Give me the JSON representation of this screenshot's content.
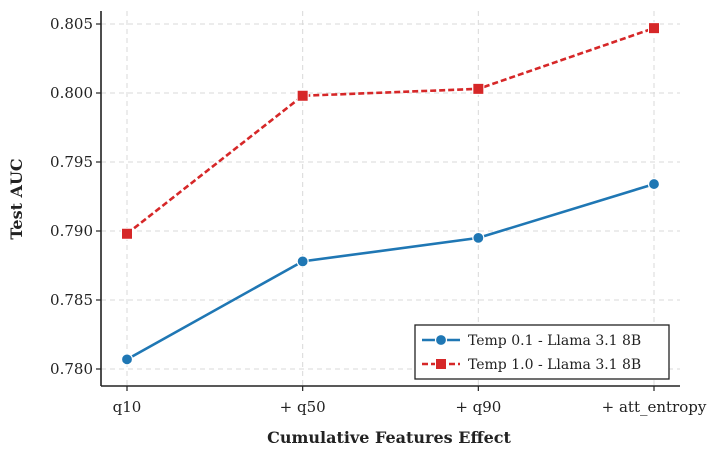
{
  "chart_data": {
    "type": "line",
    "title": "",
    "xlabel": "Cumulative Features Effect",
    "ylabel": "Test AUC",
    "categories": [
      "q10",
      "+ q50",
      "+ q90",
      "+ att_entropy"
    ],
    "ylim": [
      0.7795,
      0.806
    ],
    "yticks": [
      0.78,
      0.785,
      0.79,
      0.795,
      0.8,
      0.805
    ],
    "ytick_labels": [
      "0.780",
      "0.785",
      "0.790",
      "0.795",
      "0.800",
      "0.805"
    ],
    "grid": true,
    "legend_position": "lower-right",
    "series": [
      {
        "name": "Temp 0.1 - Llama 3.1 8B",
        "values": [
          0.7807,
          0.7878,
          0.7895,
          0.7934
        ],
        "color": "#1f77b4",
        "marker": "circle",
        "linestyle": "solid"
      },
      {
        "name": "Temp 1.0 - Llama 3.1 8B",
        "values": [
          0.7898,
          0.7998,
          0.8003,
          0.8047
        ],
        "color": "#d62728",
        "marker": "square",
        "linestyle": "dashed"
      }
    ]
  }
}
